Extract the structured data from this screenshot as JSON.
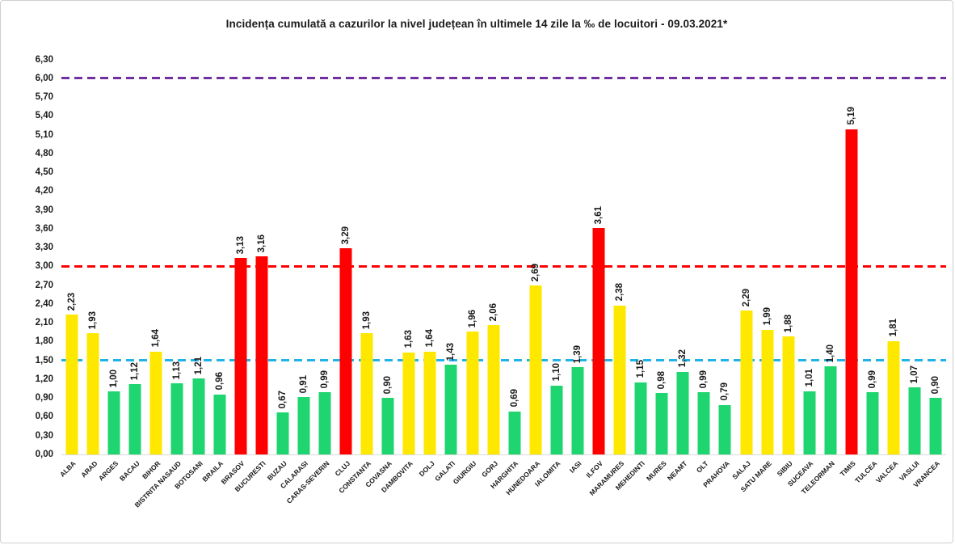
{
  "title": "Incidența cumulată a cazurilor la nivel județean în ultimele 14 zile la ‰ de locuitori - 09.03.2021*",
  "chart_data": {
    "type": "bar",
    "title": "Incidența cumulată a cazurilor la nivel județean în ultimele 14 zile la ‰ de locuitori - 09.03.2021*",
    "xlabel": "",
    "ylabel": "",
    "ylim": [
      0,
      6.45
    ],
    "ytick_step": 0.3,
    "ytick_labels": [
      "0,00",
      "0,30",
      "0,60",
      "0,90",
      "1,20",
      "1,50",
      "1,80",
      "2,10",
      "2,40",
      "2,70",
      "3,00",
      "3,30",
      "3,60",
      "3,90",
      "4,20",
      "4,50",
      "4,80",
      "5,10",
      "5,40",
      "5,70",
      "6,00",
      "6,30"
    ],
    "grid": false,
    "legend_position": "none",
    "categories": [
      "ALBA",
      "ARAD",
      "ARGES",
      "BACAU",
      "BIHOR",
      "BISTRITA NASAUD",
      "BOTOSANI",
      "BRAILA",
      "BRASOV",
      "BUCURESTI",
      "BUZAU",
      "CALARASI",
      "CARAS-SEVERIN",
      "CLUJ",
      "CONSTANTA",
      "COVASNA",
      "DAMBOVITA",
      "DOLJ",
      "GALATI",
      "GIURGIU",
      "GORJ",
      "HARGHITA",
      "HUNEDOARA",
      "IALOMITA",
      "IASI",
      "ILFOV",
      "MARAMURES",
      "MEHEDINTI",
      "MURES",
      "NEAMT",
      "OLT",
      "PRAHOVA",
      "SALAJ",
      "SATU MARE",
      "SIBIU",
      "SUCEAVA",
      "TELEORMAN",
      "TIMIS",
      "TULCEA",
      "VALCEA",
      "VASLUI",
      "VRANCEA"
    ],
    "values": [
      2.23,
      1.93,
      1.0,
      1.12,
      1.64,
      1.13,
      1.21,
      0.96,
      3.13,
      3.16,
      0.67,
      0.91,
      0.99,
      3.29,
      1.93,
      0.9,
      1.63,
      1.64,
      1.43,
      1.96,
      2.06,
      0.69,
      2.69,
      1.1,
      1.39,
      3.61,
      2.38,
      1.15,
      0.98,
      1.32,
      0.99,
      0.79,
      2.29,
      1.99,
      1.88,
      1.01,
      1.4,
      5.19,
      0.99,
      1.81,
      1.07,
      0.9
    ],
    "value_labels": [
      "2,23",
      "1,93",
      "1,00",
      "1,12",
      "1,64",
      "1,13",
      "1,21",
      "0,96",
      "3,13",
      "3,16",
      "0,67",
      "0,91",
      "0,99",
      "3,29",
      "1,93",
      "0,90",
      "1,63",
      "1,64",
      "1,43",
      "1,96",
      "2,06",
      "0,69",
      "2,69",
      "1,10",
      "1,39",
      "3,61",
      "2,38",
      "1,15",
      "0,98",
      "1,32",
      "0,99",
      "0,79",
      "2,29",
      "1,99",
      "1,88",
      "1,01",
      "1,40",
      "5,19",
      "0,99",
      "1,81",
      "1,07",
      "0,90"
    ],
    "bar_colors": [
      "yellow",
      "yellow",
      "green",
      "green",
      "yellow",
      "green",
      "green",
      "green",
      "red",
      "red",
      "green",
      "green",
      "green",
      "red",
      "yellow",
      "green",
      "yellow",
      "yellow",
      "green",
      "yellow",
      "yellow",
      "green",
      "yellow",
      "green",
      "green",
      "red",
      "yellow",
      "green",
      "green",
      "green",
      "green",
      "green",
      "yellow",
      "yellow",
      "yellow",
      "green",
      "green",
      "red",
      "green",
      "yellow",
      "green",
      "green"
    ],
    "palette": {
      "green": "#1FD56F",
      "yellow": "#FFE800",
      "red": "#FF0000"
    },
    "threshold_lines": [
      {
        "value": 6.0,
        "color": "#7030A0",
        "style": "dashed"
      },
      {
        "value": 3.0,
        "color": "#FF0000",
        "style": "dashed"
      },
      {
        "value": 1.5,
        "color": "#21B3E8",
        "style": "dashed"
      }
    ]
  }
}
